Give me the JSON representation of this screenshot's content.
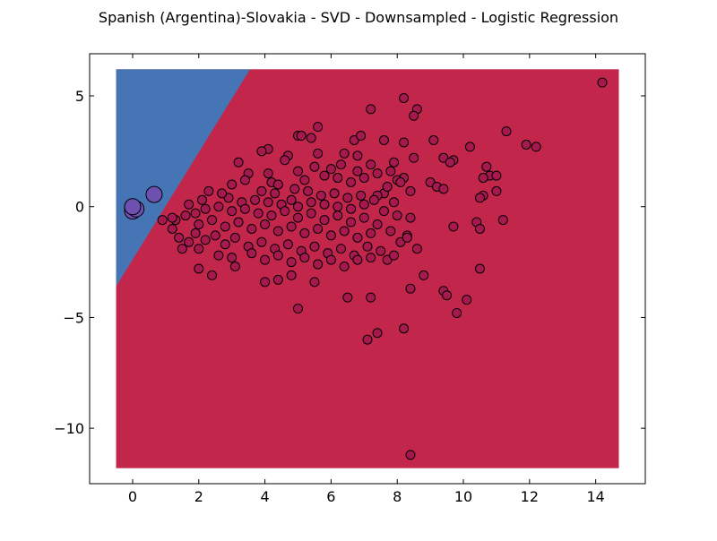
{
  "chart_data": {
    "type": "scatter",
    "title": "Spanish (Argentina)-Slovakia - SVD - Downsampled - Logistic Regression",
    "xlim": [
      -1.3,
      15.5
    ],
    "ylim": [
      -12.5,
      6.9
    ],
    "x_ticks": [
      0,
      2,
      4,
      6,
      8,
      10,
      12,
      14
    ],
    "y_ticks": [
      5,
      0,
      -5,
      -10
    ],
    "x_tick_labels": [
      "0",
      "2",
      "4",
      "6",
      "8",
      "10",
      "12",
      "14"
    ],
    "y_tick_labels": [
      "5",
      "0",
      "−5",
      "−10"
    ],
    "grid": false,
    "legend": "none",
    "decision_region": {
      "x_range": [
        -0.5,
        14.7
      ],
      "y_range": [
        -11.8,
        6.2
      ],
      "boundary_line": [
        [
          -0.5,
          -3.6
        ],
        [
          3.55,
          6.2
        ]
      ],
      "class_left_color": "#4575b4",
      "class_right_color": "#c2264a"
    },
    "series": [
      {
        "class": "right",
        "color": "#a5194f",
        "marker_size": "small",
        "points": [
          [
            14.2,
            5.6
          ],
          [
            8.2,
            4.9
          ],
          [
            7.2,
            4.4
          ],
          [
            8.6,
            4.4
          ],
          [
            8.5,
            4.1
          ],
          [
            5.6,
            3.6
          ],
          [
            11.3,
            3.4
          ],
          [
            5.0,
            3.2
          ],
          [
            5.1,
            3.2
          ],
          [
            5.4,
            3.1
          ],
          [
            6.7,
            3.0
          ],
          [
            6.9,
            3.2
          ],
          [
            7.6,
            3.0
          ],
          [
            8.2,
            2.9
          ],
          [
            9.1,
            3.0
          ],
          [
            11.9,
            2.8
          ],
          [
            12.2,
            2.7
          ],
          [
            10.2,
            2.7
          ],
          [
            4.1,
            2.6
          ],
          [
            3.9,
            2.5
          ],
          [
            5.6,
            2.4
          ],
          [
            6.4,
            2.4
          ],
          [
            6.8,
            2.3
          ],
          [
            8.5,
            2.2
          ],
          [
            9.4,
            2.2
          ],
          [
            9.7,
            2.1
          ],
          [
            9.6,
            2.0
          ],
          [
            4.7,
            2.3
          ],
          [
            4.6,
            2.1
          ],
          [
            3.2,
            2.0
          ],
          [
            7.2,
            1.9
          ],
          [
            7.9,
            2.0
          ],
          [
            10.7,
            1.8
          ],
          [
            10.8,
            1.4
          ],
          [
            11.0,
            1.4
          ],
          [
            10.6,
            1.3
          ],
          [
            8.2,
            1.3
          ],
          [
            8.0,
            1.2
          ],
          [
            9.0,
            1.1
          ],
          [
            9.2,
            0.9
          ],
          [
            9.4,
            0.8
          ],
          [
            11.0,
            0.7
          ],
          [
            10.6,
            0.5
          ],
          [
            10.5,
            0.4
          ],
          [
            8.4,
            0.7
          ],
          [
            7.6,
            0.6
          ],
          [
            7.4,
            0.5
          ],
          [
            3.5,
            1.5
          ],
          [
            4.2,
            1.1
          ],
          [
            4.4,
            1.0
          ],
          [
            5.2,
            1.2
          ],
          [
            5.8,
            1.4
          ],
          [
            6.2,
            1.3
          ],
          [
            6.6,
            1.1
          ],
          [
            7.0,
            1.3
          ],
          [
            3.9,
            0.7
          ],
          [
            4.3,
            0.6
          ],
          [
            4.9,
            0.8
          ],
          [
            5.3,
            0.7
          ],
          [
            5.7,
            0.5
          ],
          [
            6.1,
            0.6
          ],
          [
            6.5,
            0.4
          ],
          [
            6.9,
            0.5
          ],
          [
            7.3,
            0.3
          ],
          [
            2.9,
            0.4
          ],
          [
            3.3,
            0.2
          ],
          [
            3.7,
            0.3
          ],
          [
            4.1,
            0.2
          ],
          [
            4.5,
            0.1
          ],
          [
            4.8,
            0.3
          ],
          [
            5.0,
            0.0
          ],
          [
            5.4,
            0.2
          ],
          [
            5.8,
            0.1
          ],
          [
            6.2,
            0.0
          ],
          [
            6.6,
            -0.1
          ],
          [
            7.0,
            0.1
          ],
          [
            7.6,
            -0.2
          ],
          [
            7.9,
            0.2
          ],
          [
            2.2,
            -0.1
          ],
          [
            2.6,
            0.0
          ],
          [
            3.0,
            -0.2
          ],
          [
            3.4,
            -0.1
          ],
          [
            3.8,
            -0.3
          ],
          [
            4.2,
            -0.4
          ],
          [
            4.6,
            -0.2
          ],
          [
            5.0,
            -0.5
          ],
          [
            5.4,
            -0.3
          ],
          [
            5.8,
            -0.6
          ],
          [
            6.2,
            -0.4
          ],
          [
            6.6,
            -0.7
          ],
          [
            7.0,
            -0.5
          ],
          [
            7.4,
            -0.8
          ],
          [
            8.0,
            -0.4
          ],
          [
            8.4,
            -0.5
          ],
          [
            1.6,
            -0.4
          ],
          [
            1.9,
            -0.3
          ],
          [
            2.0,
            -0.8
          ],
          [
            2.4,
            -0.6
          ],
          [
            2.8,
            -0.9
          ],
          [
            3.2,
            -0.7
          ],
          [
            3.6,
            -1.0
          ],
          [
            4.0,
            -0.8
          ],
          [
            4.4,
            -1.1
          ],
          [
            4.8,
            -0.9
          ],
          [
            5.2,
            -1.2
          ],
          [
            5.6,
            -1.0
          ],
          [
            6.0,
            -1.3
          ],
          [
            6.4,
            -1.1
          ],
          [
            6.8,
            -1.4
          ],
          [
            7.2,
            -1.2
          ],
          [
            7.8,
            -1.1
          ],
          [
            1.3,
            -0.6
          ],
          [
            1.2,
            -1.0
          ],
          [
            1.4,
            -1.4
          ],
          [
            1.7,
            -1.6
          ],
          [
            1.9,
            -1.2
          ],
          [
            2.2,
            -1.5
          ],
          [
            2.5,
            -1.3
          ],
          [
            2.8,
            -1.7
          ],
          [
            3.1,
            -1.4
          ],
          [
            3.5,
            -1.8
          ],
          [
            3.9,
            -1.6
          ],
          [
            4.3,
            -1.9
          ],
          [
            4.7,
            -1.7
          ],
          [
            5.1,
            -2.0
          ],
          [
            5.5,
            -1.8
          ],
          [
            5.9,
            -2.1
          ],
          [
            6.3,
            -1.9
          ],
          [
            6.7,
            -2.2
          ],
          [
            7.1,
            -1.8
          ],
          [
            7.5,
            -2.0
          ],
          [
            8.1,
            -1.6
          ],
          [
            8.3,
            -1.3
          ],
          [
            1.5,
            -1.9
          ],
          [
            2.0,
            -1.9
          ],
          [
            2.6,
            -2.2
          ],
          [
            3.0,
            -2.3
          ],
          [
            3.6,
            -2.1
          ],
          [
            4.0,
            -2.4
          ],
          [
            4.4,
            -2.2
          ],
          [
            4.8,
            -2.5
          ],
          [
            5.2,
            -2.3
          ],
          [
            5.6,
            -2.6
          ],
          [
            6.0,
            -2.4
          ],
          [
            6.4,
            -2.7
          ],
          [
            6.8,
            -2.4
          ],
          [
            7.2,
            -2.3
          ],
          [
            7.7,
            -2.4
          ],
          [
            7.9,
            -2.2
          ],
          [
            8.6,
            -1.9
          ],
          [
            2.0,
            -2.8
          ],
          [
            2.4,
            -3.1
          ],
          [
            3.1,
            -2.7
          ],
          [
            4.0,
            -3.4
          ],
          [
            4.4,
            -3.3
          ],
          [
            4.8,
            -3.1
          ],
          [
            5.5,
            -3.4
          ],
          [
            6.5,
            -4.1
          ],
          [
            7.2,
            -4.1
          ],
          [
            8.4,
            -3.7
          ],
          [
            8.8,
            -3.1
          ],
          [
            9.4,
            -3.8
          ],
          [
            9.5,
            -4.0
          ],
          [
            10.1,
            -4.2
          ],
          [
            9.8,
            -4.8
          ],
          [
            10.5,
            -2.8
          ],
          [
            5.0,
            -4.6
          ],
          [
            7.1,
            -6.0
          ],
          [
            7.4,
            -5.7
          ],
          [
            8.2,
            -5.5
          ],
          [
            8.4,
            -11.2
          ],
          [
            11.2,
            -0.6
          ],
          [
            10.4,
            -0.7
          ],
          [
            10.5,
            -1.0
          ],
          [
            9.7,
            -0.9
          ],
          [
            8.3,
            -1.4
          ],
          [
            0.9,
            -0.6
          ],
          [
            1.2,
            -0.5
          ],
          [
            1.7,
            0.1
          ],
          [
            2.1,
            0.3
          ],
          [
            2.3,
            0.7
          ],
          [
            2.7,
            0.6
          ],
          [
            3.0,
            1.0
          ],
          [
            3.4,
            1.2
          ],
          [
            4.1,
            1.5
          ],
          [
            5.0,
            1.6
          ],
          [
            5.5,
            1.8
          ],
          [
            6.0,
            1.7
          ],
          [
            6.3,
            1.9
          ],
          [
            6.8,
            1.6
          ],
          [
            7.4,
            1.5
          ],
          [
            7.8,
            1.6
          ],
          [
            8.1,
            1.1
          ],
          [
            7.7,
            0.9
          ]
        ]
      },
      {
        "class": "left",
        "color": "#6e50b0",
        "marker_size": "large",
        "points": [
          [
            0.0,
            -0.1
          ],
          [
            0.0,
            -0.2
          ],
          [
            0.1,
            -0.1
          ],
          [
            0.0,
            0.0
          ],
          [
            0.65,
            0.55
          ]
        ]
      }
    ]
  }
}
